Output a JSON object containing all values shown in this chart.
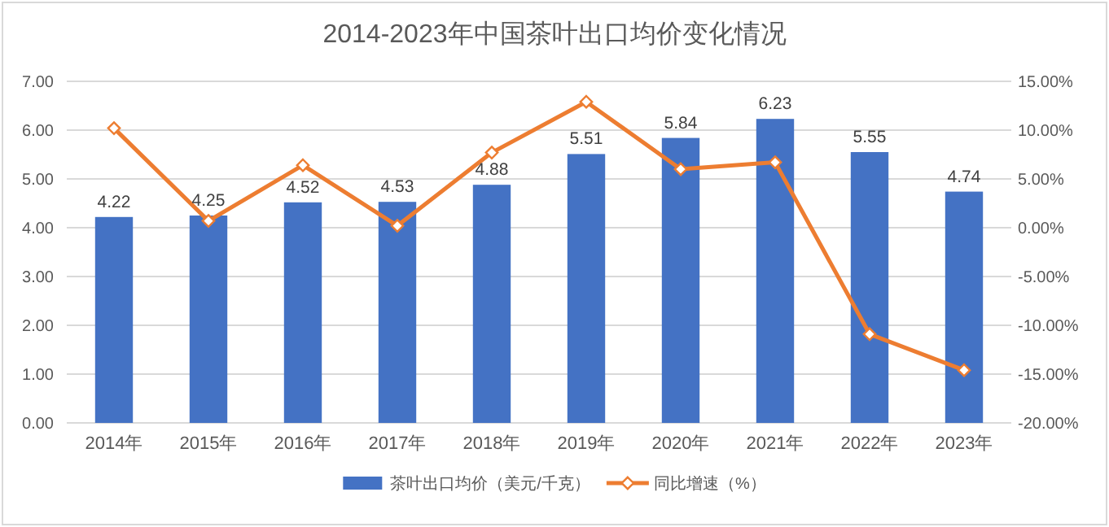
{
  "chart_data": {
    "type": "bar",
    "title": "2014-2023年中国茶叶出口均价变化情况",
    "categories": [
      "2014年",
      "2015年",
      "2016年",
      "2017年",
      "2018年",
      "2019年",
      "2020年",
      "2021年",
      "2022年",
      "2023年"
    ],
    "series": [
      {
        "name": "茶叶出口均价（美元/千克）",
        "color": "#4472c4",
        "values": [
          4.22,
          4.25,
          4.52,
          4.53,
          4.88,
          5.51,
          5.84,
          6.23,
          5.55,
          4.74
        ],
        "value_labels": [
          "4.22",
          "4.25",
          "4.52",
          "4.53",
          "4.88",
          "5.51",
          "5.84",
          "6.23",
          "5.55",
          "4.74"
        ]
      },
      {
        "name": "同比增速（%）",
        "type": "line",
        "axis": "y2",
        "color": "#ed7d31",
        "values": [
          10.2,
          0.7,
          6.4,
          0.2,
          7.7,
          12.9,
          6.0,
          6.7,
          -10.9,
          -14.6
        ]
      }
    ],
    "ylim": [
      0,
      7
    ],
    "yticks": [
      {
        "value": 0,
        "label": "0.00"
      },
      {
        "value": 1,
        "label": "1.00"
      },
      {
        "value": 2,
        "label": "2.00"
      },
      {
        "value": 3,
        "label": "3.00"
      },
      {
        "value": 4,
        "label": "4.00"
      },
      {
        "value": 5,
        "label": "5.00"
      },
      {
        "value": 6,
        "label": "6.00"
      },
      {
        "value": 7,
        "label": "7.00"
      }
    ],
    "y2lim": [
      -20,
      15
    ],
    "y2ticks": [
      {
        "value": -20,
        "label": "-20.00%"
      },
      {
        "value": -15,
        "label": "-15.00%"
      },
      {
        "value": -10,
        "label": "-10.00%"
      },
      {
        "value": -5,
        "label": "-5.00%"
      },
      {
        "value": 0,
        "label": "0.00%"
      },
      {
        "value": 5,
        "label": "5.00%"
      },
      {
        "value": 10,
        "label": "10.00%"
      },
      {
        "value": 15,
        "label": "15.00%"
      }
    ],
    "grid": "y",
    "legend": "bottom",
    "marker": "diamond"
  }
}
